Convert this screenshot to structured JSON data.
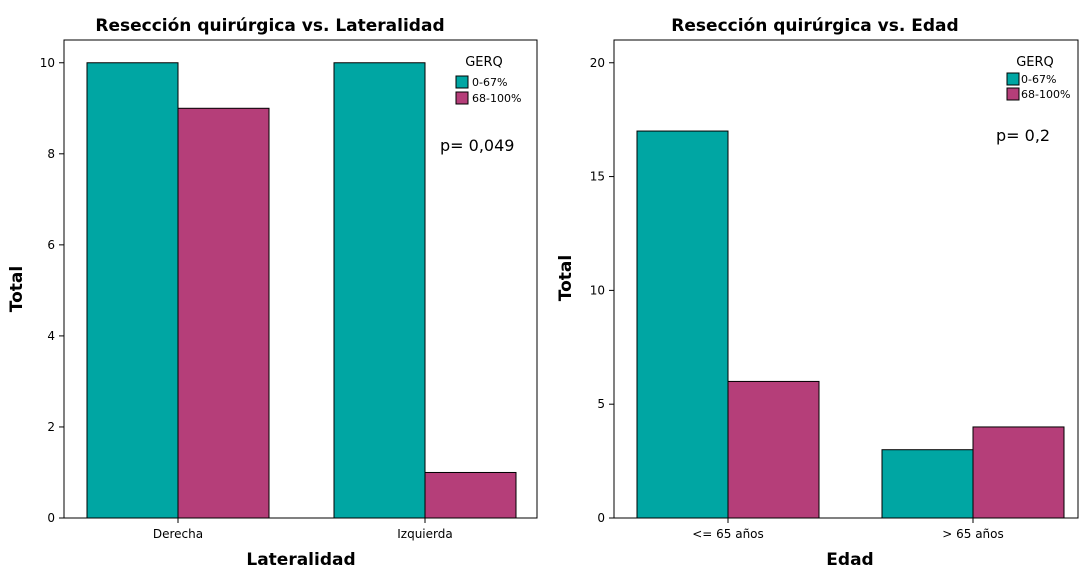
{
  "colors": {
    "series1": "#00A6A3",
    "series2": "#B53E79",
    "frame": "#000000"
  },
  "chart_data": [
    {
      "type": "bar",
      "title": "Resección quirúrgica vs. Lateralidad",
      "xlabel": "Lateralidad",
      "ylabel": "Total",
      "categories": [
        "Derecha",
        "Izquierda"
      ],
      "series": [
        {
          "name": "0-67%",
          "values": [
            10,
            10
          ]
        },
        {
          "name": "68-100%",
          "values": [
            9,
            1
          ]
        }
      ],
      "ylim": [
        0,
        10.5
      ],
      "yticks": [
        0,
        2,
        4,
        6,
        8,
        10
      ],
      "legend_title": "GERQ",
      "legend_position": "top-right",
      "annotation": "p= 0,049",
      "grid": false
    },
    {
      "type": "bar",
      "title": "Resección quirúrgica vs. Edad",
      "xlabel": "Edad",
      "ylabel": "Total",
      "categories": [
        "<= 65 años",
        "> 65 años"
      ],
      "series": [
        {
          "name": "0-67%",
          "values": [
            17,
            3
          ]
        },
        {
          "name": "68-100%",
          "values": [
            6,
            4
          ]
        }
      ],
      "ylim": [
        0,
        21
      ],
      "yticks": [
        0,
        5,
        10,
        15,
        20
      ],
      "legend_title": "GERQ",
      "legend_position": "top-right",
      "annotation": "p= 0,2",
      "grid": false
    }
  ]
}
